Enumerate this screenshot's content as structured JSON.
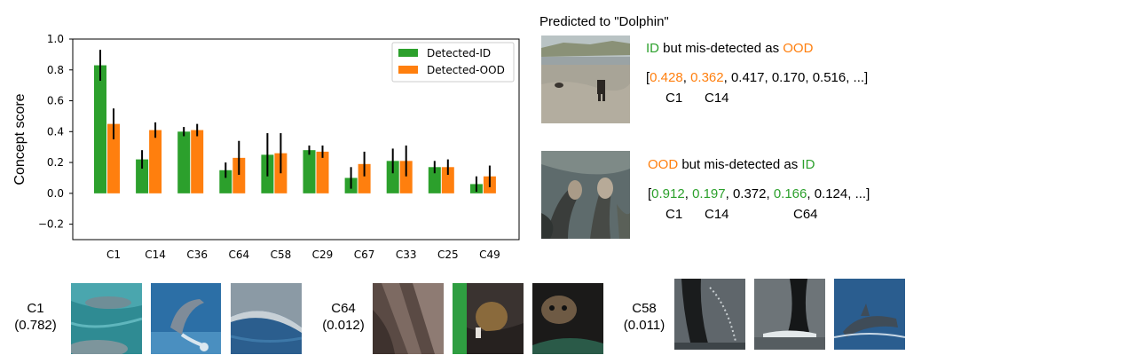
{
  "chart_data": {
    "type": "bar",
    "ylabel": "Concept score",
    "ylim": [
      -0.3,
      1.0
    ],
    "yticks": [
      "1.0",
      "0.8",
      "0.6",
      "0.4",
      "0.2",
      "0.0",
      "−0.2"
    ],
    "ytick_values": [
      1.0,
      0.8,
      0.6,
      0.4,
      0.2,
      0.0,
      -0.2
    ],
    "categories": [
      "C1",
      "C14",
      "C36",
      "C64",
      "C58",
      "C29",
      "C67",
      "C33",
      "C25",
      "C49"
    ],
    "series": [
      {
        "name": "Detected-ID",
        "color": "#2ca02c",
        "values": [
          0.83,
          0.22,
          0.4,
          0.15,
          0.25,
          0.28,
          0.1,
          0.21,
          0.17,
          0.06
        ],
        "err": [
          0.1,
          0.06,
          0.03,
          0.05,
          0.14,
          0.03,
          0.07,
          0.08,
          0.04,
          0.05
        ]
      },
      {
        "name": "Detected-OOD",
        "color": "#ff7f0e",
        "values": [
          0.45,
          0.41,
          0.41,
          0.23,
          0.26,
          0.27,
          0.19,
          0.21,
          0.17,
          0.11
        ],
        "err": [
          0.1,
          0.05,
          0.04,
          0.11,
          0.13,
          0.04,
          0.08,
          0.1,
          0.05,
          0.07
        ]
      }
    ],
    "legend_position": "top-right",
    "grid": false
  },
  "right_panel": {
    "title": "Predicted to \"Dolphin\"",
    "case1": {
      "line1_a": "ID",
      "line1_b": " but mis-detected as ",
      "line1_c": "OOD",
      "open": "[",
      "v1": "0.428",
      "sep1": ", ",
      "v2": "0.362",
      "rest": ", 0.417, 0.170, 0.516, ...]",
      "lab1": "C1",
      "lab2": "C14"
    },
    "case2": {
      "line1_a": "OOD",
      "line1_b": " but mis-detected as ",
      "line1_c": "ID",
      "open": "[",
      "v1": "0.912",
      "sep1": ", ",
      "v2": "0.197",
      "mid": ", 0.372, ",
      "v4": "0.166",
      "rest": ", 0.124, ...]",
      "lab1": "C1",
      "lab2": "C14",
      "lab3": "C64"
    }
  },
  "concepts": [
    {
      "name": "C1",
      "score": "(0.782)"
    },
    {
      "name": "C64",
      "score": "(0.012)"
    },
    {
      "name": "C58",
      "score": "(0.011)"
    }
  ]
}
